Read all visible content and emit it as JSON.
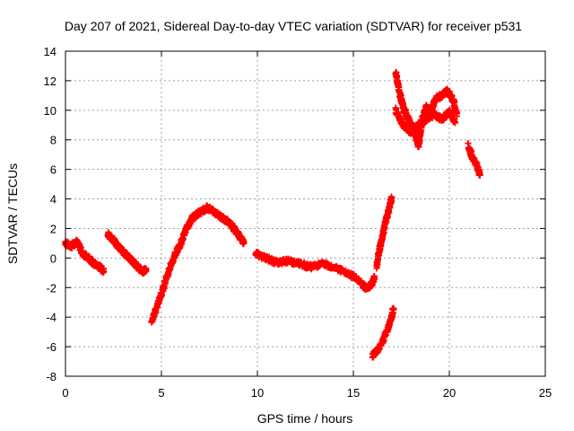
{
  "chart_data": {
    "type": "scatter",
    "title": "Day 207 of 2021, Sidereal Day-to-day VTEC variation (SDTVAR) for receiver p531",
    "xlabel": "GPS time / hours",
    "ylabel": "SDTVAR / TECUs",
    "xlim": [
      0,
      25
    ],
    "ylim": [
      -8,
      14
    ],
    "xticks": [
      0,
      5,
      10,
      15,
      20,
      25
    ],
    "yticks": [
      -8,
      -6,
      -4,
      -2,
      0,
      2,
      4,
      6,
      8,
      10,
      12,
      14
    ],
    "grid": true,
    "legend": "none",
    "marker": "+",
    "color": "#ff0000",
    "series": [
      {
        "x": [
          0.0,
          0.3,
          0.6,
          0.9,
          1.2,
          1.5,
          1.8,
          2.0
        ],
        "y": [
          1.0,
          0.8,
          1.1,
          0.3,
          0.0,
          -0.4,
          -0.6,
          -0.9
        ]
      },
      {
        "x": [
          2.2,
          2.5,
          2.8,
          3.1,
          3.4,
          3.7,
          4.0,
          4.2
        ],
        "y": [
          1.6,
          1.2,
          0.7,
          0.3,
          -0.1,
          -0.5,
          -0.9,
          -0.8
        ]
      },
      {
        "x": [
          4.5,
          4.8,
          5.1,
          5.4,
          5.7,
          6.0,
          6.3,
          6.6,
          7.0,
          7.4,
          7.8,
          8.2,
          8.6,
          9.0,
          9.3
        ],
        "y": [
          -4.2,
          -3.2,
          -2.0,
          -0.8,
          0.2,
          1.0,
          2.0,
          2.7,
          3.1,
          3.4,
          3.1,
          2.7,
          2.3,
          1.6,
          1.0
        ]
      },
      {
        "x": [
          9.9,
          10.4,
          11.0,
          11.6,
          12.2,
          12.8,
          13.4,
          14.0,
          14.6,
          15.2,
          15.6,
          15.9,
          16.1
        ],
        "y": [
          0.3,
          0.0,
          -0.3,
          -0.2,
          -0.4,
          -0.6,
          -0.4,
          -0.6,
          -1.0,
          -1.4,
          -2.0,
          -1.9,
          -1.3
        ]
      },
      {
        "x": [
          16.2,
          16.4,
          16.6,
          16.8,
          17.0
        ],
        "y": [
          -0.6,
          0.8,
          2.0,
          3.0,
          4.1
        ]
      },
      {
        "x": [
          16.0,
          16.3,
          16.6,
          16.9,
          17.1
        ],
        "y": [
          -6.6,
          -6.2,
          -5.4,
          -4.4,
          -3.4
        ]
      },
      {
        "x": [
          17.2,
          17.4,
          17.6,
          17.8,
          18.0,
          18.2,
          18.4,
          18.6,
          18.8,
          19.0,
          19.3,
          19.6,
          19.9,
          20.2,
          20.4
        ],
        "y": [
          12.6,
          11.2,
          10.2,
          9.6,
          9.0,
          8.4,
          7.6,
          9.4,
          10.2,
          9.9,
          10.8,
          11.0,
          11.3,
          10.7,
          9.6
        ]
      },
      {
        "x": [
          17.2,
          17.6,
          18.0,
          18.4,
          18.8,
          19.2,
          19.6,
          20.0,
          20.3
        ],
        "y": [
          10.0,
          9.0,
          8.5,
          9.0,
          9.4,
          9.7,
          9.4,
          9.9,
          9.2
        ]
      },
      {
        "x": [
          21.0,
          21.2,
          21.4,
          21.6
        ],
        "y": [
          7.6,
          6.8,
          6.4,
          5.6
        ]
      }
    ]
  }
}
